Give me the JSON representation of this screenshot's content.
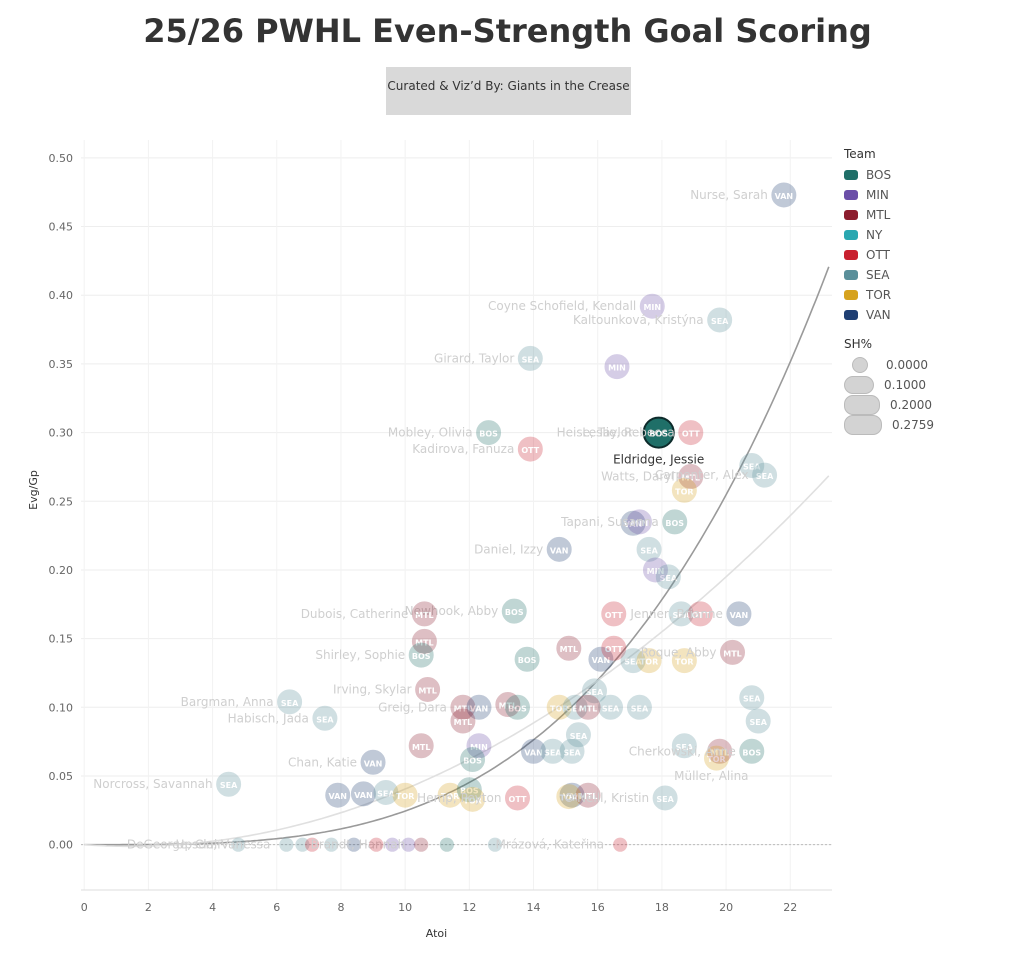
{
  "title": "25/26 PWHL Even-Strength Goal Scoring",
  "credit": "Curated & Viz’d By: Giants in the Crease",
  "legend": {
    "team_title": "Team",
    "teams": [
      {
        "code": "BOS",
        "color": "#1f6f68"
      },
      {
        "code": "MIN",
        "color": "#6b4fa8"
      },
      {
        "code": "MTL",
        "color": "#8c1d2e"
      },
      {
        "code": "NY",
        "color": "#2aa7b0"
      },
      {
        "code": "OTT",
        "color": "#c8202f"
      },
      {
        "code": "SEA",
        "color": "#5a8f9a"
      },
      {
        "code": "TOR",
        "color": "#d6a21e"
      },
      {
        "code": "VAN",
        "color": "#1f3f73"
      }
    ],
    "size_title": "SH%",
    "sizes": [
      "0.0000",
      "0.1000",
      "0.2000",
      "0.2759"
    ]
  },
  "chart_data": {
    "type": "scatter",
    "xlabel": "Atoi",
    "ylabel": "Evg/Gp",
    "xlim": [
      -0.1,
      23.3
    ],
    "ylim": [
      -0.033,
      0.513
    ],
    "xticks": [
      0,
      2,
      4,
      6,
      8,
      10,
      12,
      14,
      16,
      18,
      20,
      22
    ],
    "yticks": [
      0.0,
      0.05,
      0.1,
      0.15,
      0.2,
      0.25,
      0.3,
      0.35,
      0.4,
      0.45,
      0.5
    ],
    "ytick_labels": [
      "0.00",
      "0.05",
      "0.10",
      "0.15",
      "0.20",
      "0.25",
      "0.30",
      "0.35",
      "0.40",
      "0.45",
      "0.50"
    ],
    "grid": true,
    "legend_position": "right",
    "highlighted": "Eldridge, Jessie",
    "trend_steep_label": "",
    "points": [
      {
        "x": 21.8,
        "y": 0.473,
        "team": "VAN",
        "label": "Nurse, Sarah"
      },
      {
        "x": 17.7,
        "y": 0.392,
        "team": "MIN",
        "label": "Coyne Schofield, Kendall"
      },
      {
        "x": 19.8,
        "y": 0.382,
        "team": "SEA",
        "label": "Kaltounková, Kristýna"
      },
      {
        "x": 13.9,
        "y": 0.354,
        "team": "SEA",
        "label": "Girard, Taylor"
      },
      {
        "x": 16.6,
        "y": 0.348,
        "team": "MIN",
        "label": ""
      },
      {
        "x": 12.6,
        "y": 0.3,
        "team": "BOS",
        "label": "Mobley, Olivia"
      },
      {
        "x": 17.9,
        "y": 0.3,
        "team": "BOS",
        "label": "Eldridge, Jessie"
      },
      {
        "x": 18.9,
        "y": 0.3,
        "team": "OTT",
        "label": "Leslie, Rebecca"
      },
      {
        "x": 13.9,
        "y": 0.288,
        "team": "OTT",
        "label": "Kadirova, Fanuza"
      },
      {
        "x": 18.9,
        "y": 0.268,
        "team": "MTL",
        "label": "Watts, Daryl"
      },
      {
        "x": 18.7,
        "y": 0.258,
        "team": "TOR",
        "label": ""
      },
      {
        "x": 20.8,
        "y": 0.276,
        "team": "SEA",
        "label": ""
      },
      {
        "x": 21.2,
        "y": 0.269,
        "team": "SEA",
        "label": "Carpenter, Alex"
      },
      {
        "x": 17.1,
        "y": 0.234,
        "team": "VAN",
        "label": ""
      },
      {
        "x": 17.3,
        "y": 0.235,
        "team": "MIN",
        "label": ""
      },
      {
        "x": 18.4,
        "y": 0.235,
        "team": "BOS",
        "label": "Tapani, Susanna"
      },
      {
        "x": 14.8,
        "y": 0.215,
        "team": "VAN",
        "label": "Daniel, Izzy"
      },
      {
        "x": 17.6,
        "y": 0.215,
        "team": "SEA",
        "label": ""
      },
      {
        "x": 17.8,
        "y": 0.2,
        "team": "MIN",
        "label": ""
      },
      {
        "x": 18.2,
        "y": 0.195,
        "team": "SEA",
        "label": ""
      },
      {
        "x": 13.4,
        "y": 0.17,
        "team": "BOS",
        "label": "Newhook, Abby"
      },
      {
        "x": 10.6,
        "y": 0.168,
        "team": "MTL",
        "label": "Dubois, Catherine"
      },
      {
        "x": 16.5,
        "y": 0.168,
        "team": "OTT",
        "label": ""
      },
      {
        "x": 18.6,
        "y": 0.168,
        "team": "SEA",
        "label": ""
      },
      {
        "x": 19.2,
        "y": 0.168,
        "team": "OTT",
        "label": ""
      },
      {
        "x": 20.4,
        "y": 0.168,
        "team": "VAN",
        "label": "Jenner, Brianne"
      },
      {
        "x": 10.6,
        "y": 0.148,
        "team": "MTL",
        "label": ""
      },
      {
        "x": 10.5,
        "y": 0.138,
        "team": "BOS",
        "label": "Shirley, Sophie"
      },
      {
        "x": 13.8,
        "y": 0.135,
        "team": "BOS",
        "label": ""
      },
      {
        "x": 15.1,
        "y": 0.143,
        "team": "MTL",
        "label": ""
      },
      {
        "x": 16.1,
        "y": 0.135,
        "team": "VAN",
        "label": ""
      },
      {
        "x": 16.5,
        "y": 0.143,
        "team": "OTT",
        "label": ""
      },
      {
        "x": 17.1,
        "y": 0.134,
        "team": "SEA",
        "label": ""
      },
      {
        "x": 17.6,
        "y": 0.134,
        "team": "TOR",
        "label": ""
      },
      {
        "x": 18.7,
        "y": 0.134,
        "team": "TOR",
        "label": ""
      },
      {
        "x": 20.2,
        "y": 0.14,
        "team": "MTL",
        "label": "Roque, Abby"
      },
      {
        "x": 10.7,
        "y": 0.113,
        "team": "MTL",
        "label": "Irving, Skylar"
      },
      {
        "x": 6.4,
        "y": 0.104,
        "team": "SEA",
        "label": "Bargman, Anna"
      },
      {
        "x": 7.5,
        "y": 0.092,
        "team": "SEA",
        "label": "Habisch, Jada"
      },
      {
        "x": 11.8,
        "y": 0.1,
        "team": "MTL",
        "label": "Greig, Dara"
      },
      {
        "x": 12.3,
        "y": 0.1,
        "team": "VAN",
        "label": ""
      },
      {
        "x": 13.2,
        "y": 0.102,
        "team": "MTL",
        "label": ""
      },
      {
        "x": 13.5,
        "y": 0.1,
        "team": "BOS",
        "label": ""
      },
      {
        "x": 14.8,
        "y": 0.1,
        "team": "TOR",
        "label": ""
      },
      {
        "x": 15.3,
        "y": 0.1,
        "team": "SEA",
        "label": ""
      },
      {
        "x": 15.9,
        "y": 0.112,
        "team": "SEA",
        "label": ""
      },
      {
        "x": 16.4,
        "y": 0.1,
        "team": "SEA",
        "label": ""
      },
      {
        "x": 15.7,
        "y": 0.1,
        "team": "MTL",
        "label": ""
      },
      {
        "x": 17.3,
        "y": 0.1,
        "team": "SEA",
        "label": ""
      },
      {
        "x": 11.8,
        "y": 0.09,
        "team": "MTL",
        "label": ""
      },
      {
        "x": 20.8,
        "y": 0.107,
        "team": "SEA",
        "label": ""
      },
      {
        "x": 21.0,
        "y": 0.09,
        "team": "SEA",
        "label": ""
      },
      {
        "x": 10.5,
        "y": 0.072,
        "team": "MTL",
        "label": ""
      },
      {
        "x": 12.3,
        "y": 0.072,
        "team": "MIN",
        "label": ""
      },
      {
        "x": 12.1,
        "y": 0.062,
        "team": "BOS",
        "label": ""
      },
      {
        "x": 9.0,
        "y": 0.06,
        "team": "VAN",
        "label": "Chan, Katie"
      },
      {
        "x": 14.0,
        "y": 0.068,
        "team": "VAN",
        "label": ""
      },
      {
        "x": 14.6,
        "y": 0.068,
        "team": "SEA",
        "label": ""
      },
      {
        "x": 15.2,
        "y": 0.068,
        "team": "SEA",
        "label": ""
      },
      {
        "x": 15.4,
        "y": 0.08,
        "team": "SEA",
        "label": ""
      },
      {
        "x": 18.7,
        "y": 0.072,
        "team": "SEA",
        "label": ""
      },
      {
        "x": 19.8,
        "y": 0.068,
        "team": "MTL",
        "label": ""
      },
      {
        "x": 19.7,
        "y": 0.063,
        "team": "TOR",
        "label": ""
      },
      {
        "x": 20.8,
        "y": 0.068,
        "team": "BOS",
        "label": "Cherkowski, Anne"
      },
      {
        "x": 4.5,
        "y": 0.044,
        "team": "SEA",
        "label": "Norcross, Savannah"
      },
      {
        "x": 7.9,
        "y": 0.036,
        "team": "VAN",
        "label": ""
      },
      {
        "x": 8.7,
        "y": 0.037,
        "team": "VAN",
        "label": ""
      },
      {
        "x": 9.4,
        "y": 0.038,
        "team": "SEA",
        "label": ""
      },
      {
        "x": 10.0,
        "y": 0.036,
        "team": "TOR",
        "label": ""
      },
      {
        "x": 11.4,
        "y": 0.036,
        "team": "TOR",
        "label": ""
      },
      {
        "x": 12.0,
        "y": 0.04,
        "team": "BOS",
        "label": ""
      },
      {
        "x": 12.1,
        "y": 0.033,
        "team": "TOR",
        "label": ""
      },
      {
        "x": 13.5,
        "y": 0.034,
        "team": "OTT",
        "label": "Hemp, Peyton"
      },
      {
        "x": 15.2,
        "y": 0.036,
        "team": "VAN",
        "label": ""
      },
      {
        "x": 15.7,
        "y": 0.036,
        "team": "MTL",
        "label": ""
      },
      {
        "x": 15.1,
        "y": 0.035,
        "team": "TOR",
        "label": ""
      },
      {
        "x": 18.1,
        "y": 0.034,
        "team": "SEA",
        "label": "O'Neill, Kristin"
      },
      {
        "x": 4.8,
        "y": 0.0,
        "team": "SEA",
        "label": "DeGeorge, Clair"
      },
      {
        "x": 6.3,
        "y": 0.0,
        "team": "SEA",
        "label": "Upson, Vanessa"
      },
      {
        "x": 6.8,
        "y": 0.0,
        "team": "SEA",
        "label": ""
      },
      {
        "x": 7.1,
        "y": 0.0,
        "team": "OTT",
        "label": ""
      },
      {
        "x": 7.7,
        "y": 0.0,
        "team": "SEA",
        "label": ""
      },
      {
        "x": 8.4,
        "y": 0.0,
        "team": "VAN",
        "label": ""
      },
      {
        "x": 9.6,
        "y": 0.0,
        "team": "MIN",
        "label": ""
      },
      {
        "x": 10.1,
        "y": 0.0,
        "team": "MIN",
        "label": ""
      },
      {
        "x": 10.5,
        "y": 0.0,
        "team": "MTL",
        "label": "Brandt, Hannah"
      },
      {
        "x": 11.3,
        "y": 0.0,
        "team": "BOS",
        "label": ""
      },
      {
        "x": 12.8,
        "y": 0.0,
        "team": "SEA",
        "label": ""
      },
      {
        "x": 16.7,
        "y": 0.0,
        "team": "OTT",
        "label": "Mrázová, Kateřina"
      },
      {
        "x": 9.1,
        "y": 0.0,
        "team": "OTT",
        "label": ""
      }
    ],
    "extra_labels": [
      {
        "text": "Heise, Taylor",
        "x": 17.1,
        "y": 0.3
      },
      {
        "text": "Müller, Alina",
        "x": 20.7,
        "y": 0.05
      },
      {
        "text": "Irving, Skylar",
        "x": 10.7,
        "y": 0.113
      }
    ]
  }
}
